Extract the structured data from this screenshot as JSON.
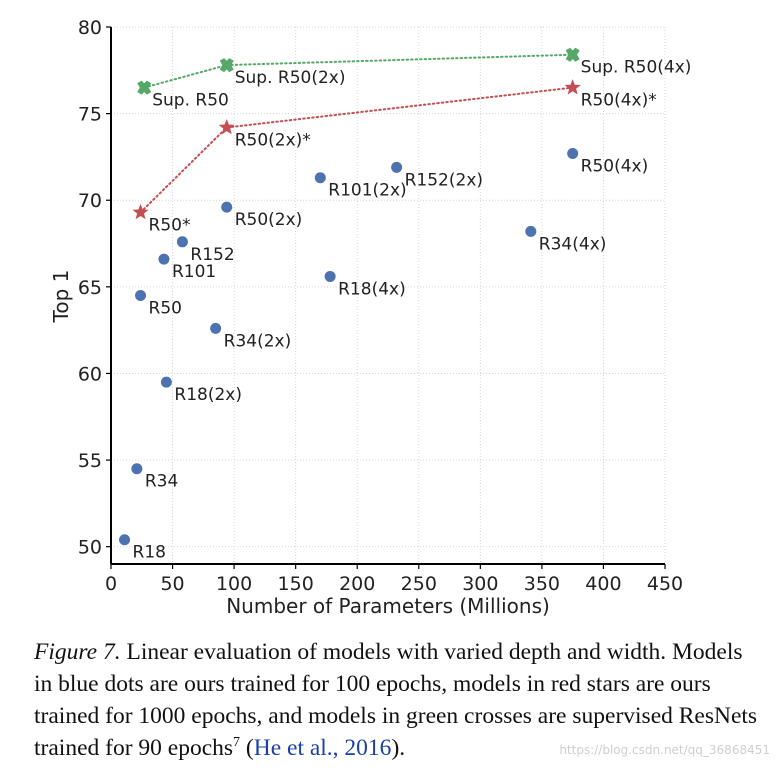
{
  "chart_data": {
    "type": "scatter",
    "xlabel": "Number of Parameters (Millions)",
    "ylabel": "Top 1",
    "xlim": [
      0,
      450
    ],
    "ylim": [
      49,
      80
    ],
    "xticks": [
      0,
      50,
      100,
      150,
      200,
      250,
      300,
      350,
      400,
      450
    ],
    "yticks": [
      50,
      55,
      60,
      65,
      70,
      75,
      80
    ],
    "grid": true,
    "colors": {
      "blue": "#4c72b0",
      "red": "#c44e52",
      "green": "#55a868"
    },
    "series": [
      {
        "name": "ours (100 epochs)",
        "marker": "dot",
        "color": "#4c72b0",
        "points": [
          {
            "label": "R18",
            "x": 11,
            "y": 50.4
          },
          {
            "label": "R34",
            "x": 21,
            "y": 54.5
          },
          {
            "label": "R50",
            "x": 24,
            "y": 64.5
          },
          {
            "label": "R101",
            "x": 43,
            "y": 66.6
          },
          {
            "label": "R152",
            "x": 58,
            "y": 67.6
          },
          {
            "label": "R18(2x)",
            "x": 45,
            "y": 59.5
          },
          {
            "label": "R34(2x)",
            "x": 85,
            "y": 62.6
          },
          {
            "label": "R50(2x)",
            "x": 94,
            "y": 69.6
          },
          {
            "label": "R101(2x)",
            "x": 170,
            "y": 71.3
          },
          {
            "label": "R152(2x)",
            "x": 232,
            "y": 71.9
          },
          {
            "label": "R18(4x)",
            "x": 178,
            "y": 65.6
          },
          {
            "label": "R34(4x)",
            "x": 341,
            "y": 68.2
          },
          {
            "label": "R50(4x)",
            "x": 375,
            "y": 72.7
          }
        ]
      },
      {
        "name": "ours (1000 epochs)",
        "marker": "star",
        "color": "#c44e52",
        "points": [
          {
            "label": "R50*",
            "x": 24,
            "y": 69.3
          },
          {
            "label": "R50(2x)*",
            "x": 94,
            "y": 74.2
          },
          {
            "label": "R50(4x)*",
            "x": 375,
            "y": 76.5
          }
        ]
      },
      {
        "name": "supervised (90 epochs)",
        "marker": "cross",
        "color": "#55a868",
        "points": [
          {
            "label": "Sup. R50",
            "x": 27,
            "y": 76.5
          },
          {
            "label": "Sup. R50(2x)",
            "x": 94,
            "y": 77.8
          },
          {
            "label": "Sup. R50(4x)",
            "x": 375,
            "y": 78.4
          }
        ]
      }
    ]
  },
  "caption": {
    "figure_label": "Figure 7.",
    "text": " Linear evaluation of models with varied depth and width. Models in blue dots are ours trained for 100 epochs, models in red stars are ours trained for 1000 epochs, and models in green crosses are supervised ResNets trained for 90 epochs",
    "footnote_mark": "7",
    "citation_open": " (",
    "citation": "He et al., 2016",
    "citation_close": ")."
  },
  "watermark": "https://blog.csdn.net/qq_36868451"
}
